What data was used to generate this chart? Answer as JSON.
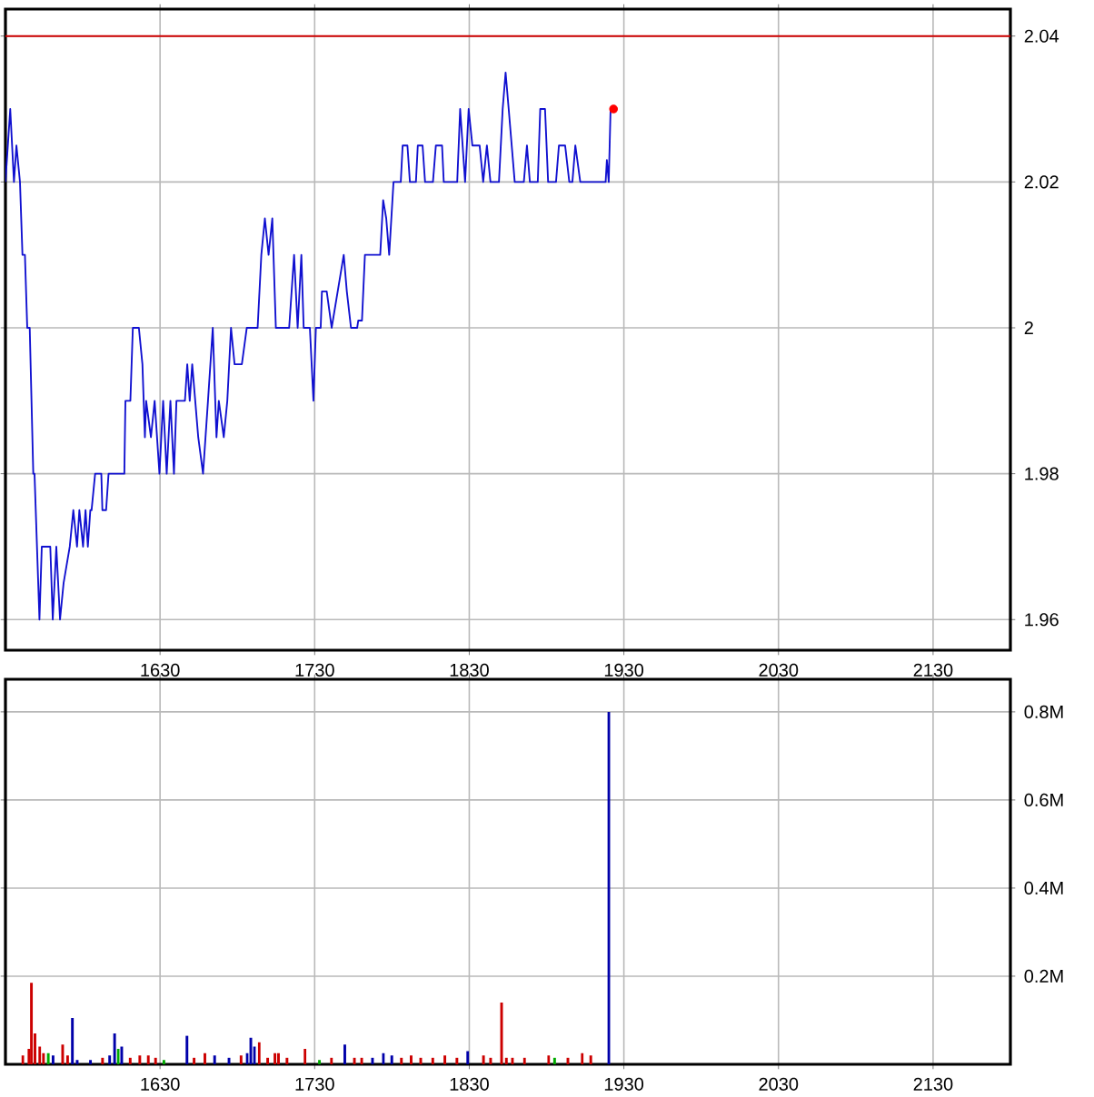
{
  "chart_data": [
    {
      "type": "line",
      "xlim": [
        1530,
        2180
      ],
      "ylim": [
        1.9558,
        2.0437
      ],
      "xticks": [
        1630,
        1730,
        1830,
        1930,
        2030,
        2130
      ],
      "yticks": [
        1.96,
        1.98,
        2,
        2.02,
        2.04
      ],
      "grid": true,
      "ref_lines": [
        {
          "axis": "y",
          "value": 2.04,
          "color": "#cc0000"
        }
      ],
      "series": [
        {
          "color": "#1010d0",
          "x": [
            1530,
            1533.1,
            1535.5,
            1537.1,
            1539.4,
            1541,
            1542.6,
            1544.1,
            1545.7,
            1548,
            1548.8,
            1552,
            1553.5,
            1559,
            1560.6,
            1562.9,
            1565.3,
            1567.6,
            1571.6,
            1573.9,
            1576.3,
            1577.8,
            1580.2,
            1581.8,
            1583.3,
            1584.9,
            1585.7,
            1588,
            1592,
            1592.7,
            1595.1,
            1596.7,
            1606.9,
            1607.6,
            1610.8,
            1612.4,
            1616.3,
            1618.6,
            1620.2,
            1621,
            1624.1,
            1626.5,
            1629.6,
            1632,
            1634.3,
            1636.7,
            1639,
            1640.6,
            1646.1,
            1647.6,
            1649.2,
            1650.8,
            1654.7,
            1657.8,
            1661,
            1664.1,
            1666.5,
            1668,
            1671.2,
            1673.5,
            1675.9,
            1678.2,
            1682.9,
            1686.1,
            1693.1,
            1695.5,
            1697.8,
            1700.2,
            1702.6,
            1704.9,
            1713.5,
            1716.7,
            1719,
            1721.4,
            1722.9,
            1726.9,
            1729.2,
            1730.8,
            1733.9,
            1734.7,
            1737.8,
            1741,
            1744.9,
            1748.8,
            1750.8,
            1753.5,
            1757.5,
            1758.2,
            1760.6,
            1762.5,
            1772.4,
            1774.3,
            1776.3,
            1778.2,
            1781,
            1785.7,
            1786.9,
            1790,
            1791.6,
            1795.5,
            1796.7,
            1799.8,
            1801.4,
            1806.5,
            1808.4,
            1812.4,
            1813.5,
            1822.2,
            1824.1,
            1827.3,
            1829.6,
            1832,
            1836.7,
            1839,
            1841.4,
            1843.7,
            1849.2,
            1851.6,
            1853.5,
            1855.5,
            1859.4,
            1865.3,
            1867.3,
            1869.2,
            1874.3,
            1875.9,
            1879,
            1881,
            1886.1,
            1888,
            1892,
            1894.7,
            1896.7,
            1898.6,
            1901.8,
            1918.2,
            1919,
            1920.2,
            1921.4
          ],
          "values": [
            2.02,
            2.03,
            2.02,
            2.025,
            2.02,
            2.01,
            2.01,
            2.0,
            2.0,
            1.98,
            1.98,
            1.96,
            1.97,
            1.97,
            1.96,
            1.97,
            1.96,
            1.965,
            1.97,
            1.975,
            1.97,
            1.975,
            1.97,
            1.975,
            1.97,
            1.975,
            1.975,
            1.98,
            1.98,
            1.975,
            1.975,
            1.98,
            1.98,
            1.99,
            1.99,
            2.0,
            2.0,
            1.995,
            1.985,
            1.99,
            1.985,
            1.99,
            1.98,
            1.99,
            1.98,
            1.99,
            1.98,
            1.99,
            1.99,
            1.995,
            1.99,
            1.995,
            1.985,
            1.98,
            1.99,
            2.0,
            1.985,
            1.99,
            1.985,
            1.99,
            2.0,
            1.995,
            1.995,
            2.0,
            2.0,
            2.01,
            2.015,
            2.01,
            2.015,
            2.0,
            2.0,
            2.01,
            2.0,
            2.01,
            2.0,
            2.0,
            1.99,
            2.0,
            2.0,
            2.005,
            2.005,
            2.0,
            2.005,
            2.01,
            2.005,
            2.0,
            2.0,
            2.001,
            2.001,
            2.01,
            2.01,
            2.0175,
            2.015,
            2.01,
            2.02,
            2.02,
            2.025,
            2.025,
            2.02,
            2.02,
            2.025,
            2.025,
            2.02,
            2.02,
            2.025,
            2.025,
            2.02,
            2.02,
            2.03,
            2.02,
            2.03,
            2.025,
            2.025,
            2.02,
            2.025,
            2.02,
            2.02,
            2.03,
            2.035,
            2.03,
            2.02,
            2.02,
            2.025,
            2.02,
            2.02,
            2.03,
            2.03,
            2.02,
            2.02,
            2.025,
            2.025,
            2.02,
            2.02,
            2.025,
            2.02,
            2.02,
            2.023,
            2.02,
            2.03
          ]
        },
        {
          "type": "scatter",
          "marker": "circle",
          "color": "#ff0000",
          "x": [
            1923.3
          ],
          "values": [
            2.03
          ]
        }
      ]
    },
    {
      "type": "bar",
      "xlim": [
        1530,
        2180
      ],
      "ylim": [
        0,
        874000
      ],
      "xticks": [
        1630,
        1730,
        1830,
        1930,
        2030,
        2130
      ],
      "yticks": [
        {
          "value": 200000,
          "label": "0.2M"
        },
        {
          "value": 400000,
          "label": "0.4M"
        },
        {
          "value": 600000,
          "label": "0.6M"
        },
        {
          "value": 800000,
          "label": "0.8M"
        }
      ],
      "grid": true,
      "x": [
        1541.3,
        1545.2,
        1546.8,
        1549.1,
        1552.2,
        1554.6,
        1557.7,
        1560.8,
        1567,
        1570.2,
        1573.3,
        1576.4,
        1585,
        1592.8,
        1597.4,
        1600.6,
        1602.9,
        1605.2,
        1610.7,
        1616.9,
        1622.4,
        1627.1,
        1632.5,
        1647.4,
        1652,
        1659,
        1665.3,
        1674.6,
        1682.4,
        1686.3,
        1688.7,
        1691,
        1694.1,
        1699.6,
        1704.3,
        1706.6,
        1712.1,
        1723.8,
        1733.1,
        1740.9,
        1749.5,
        1755.7,
        1760.4,
        1767.4,
        1774.4,
        1779.9,
        1786.1,
        1792.4,
        1798.6,
        1806.4,
        1814.2,
        1822,
        1829,
        1839.2,
        1843.8,
        1850.9,
        1854,
        1857.9,
        1865.7,
        1881.3,
        1885.2,
        1893.8,
        1903.1,
        1908.6,
        1920.3
      ],
      "values": [
        20000,
        35000,
        185000,
        70000,
        40000,
        25000,
        25000,
        20000,
        45000,
        20000,
        105000,
        10000,
        10000,
        15000,
        20000,
        70000,
        35000,
        40000,
        15000,
        20000,
        20000,
        15000,
        10000,
        65000,
        15000,
        25000,
        20000,
        15000,
        20000,
        25000,
        60000,
        40000,
        50000,
        15000,
        25000,
        25000,
        15000,
        35000,
        10000,
        15000,
        45000,
        15000,
        15000,
        15000,
        25000,
        20000,
        15000,
        20000,
        15000,
        15000,
        20000,
        15000,
        30000,
        20000,
        15000,
        140000,
        15000,
        15000,
        15000,
        20000,
        15000,
        15000,
        25000,
        20000,
        800000
      ],
      "colors": [
        "#cc0000",
        "#cc0000",
        "#cc0000",
        "#cc0000",
        "#cc0000",
        "#cc0000",
        "#00aa00",
        "#0000aa",
        "#cc0000",
        "#cc0000",
        "#0000aa",
        "#0000aa",
        "#0000aa",
        "#cc0000",
        "#0000aa",
        "#0000aa",
        "#00aa00",
        "#0000aa",
        "#cc0000",
        "#cc0000",
        "#cc0000",
        "#cc0000",
        "#00aa00",
        "#0000aa",
        "#cc0000",
        "#cc0000",
        "#0000aa",
        "#0000aa",
        "#cc0000",
        "#0000aa",
        "#0000aa",
        "#0000aa",
        "#cc0000",
        "#cc0000",
        "#cc0000",
        "#cc0000",
        "#cc0000",
        "#cc0000",
        "#00aa00",
        "#cc0000",
        "#0000aa",
        "#cc0000",
        "#cc0000",
        "#0000aa",
        "#0000aa",
        "#0000aa",
        "#cc0000",
        "#cc0000",
        "#cc0000",
        "#cc0000",
        "#cc0000",
        "#cc0000",
        "#0000aa",
        "#cc0000",
        "#cc0000",
        "#cc0000",
        "#cc0000",
        "#cc0000",
        "#cc0000",
        "#cc0000",
        "#00aa00",
        "#cc0000",
        "#cc0000",
        "#cc0000",
        "#0000aa"
      ]
    }
  ]
}
